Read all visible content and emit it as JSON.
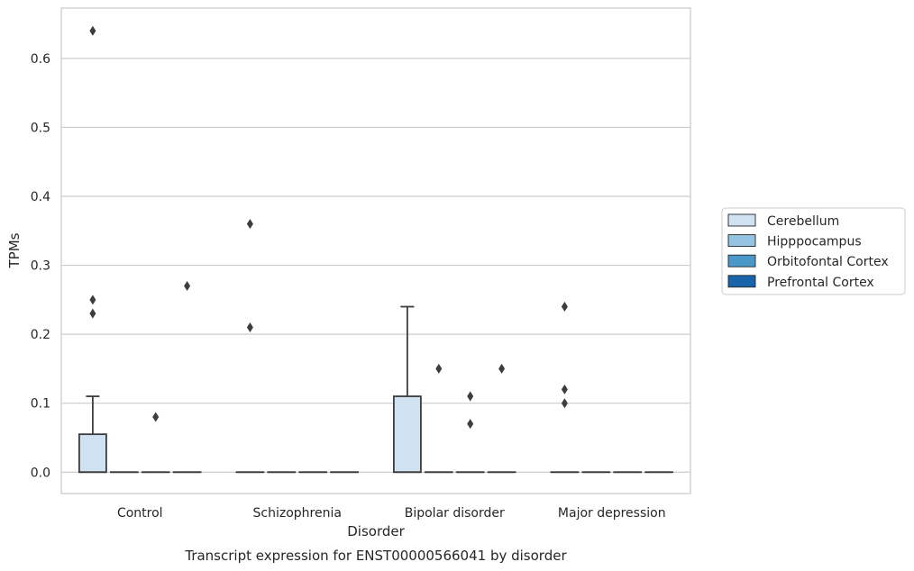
{
  "chart_data": {
    "type": "boxplot",
    "title": "Transcript expression for ENST00000566041 by disorder",
    "xlabel": "Disorder",
    "ylabel": "TPMs",
    "categories": [
      "Control",
      "Schizophrenia",
      "Bipolar disorder",
      "Major depression"
    ],
    "ylim": [
      -0.031,
      0.673
    ],
    "yticks": [
      0.0,
      0.1,
      0.2,
      0.3,
      0.4,
      0.5,
      0.6
    ],
    "ytick_labels": [
      "0.0",
      "0.1",
      "0.2",
      "0.3",
      "0.4",
      "0.5",
      "0.6"
    ],
    "grid": "horizontal",
    "legend_position": "center-right, outside",
    "series": [
      {
        "name": "Cerebellum",
        "color": "#d0e1f2",
        "boxes": [
          {
            "min": 0,
            "q1": 0,
            "median": 0,
            "q3": 0.055,
            "max": 0.11,
            "outliers": [
              0.64,
              0.25,
              0.23
            ]
          },
          {
            "min": 0,
            "q1": 0,
            "median": 0,
            "q3": 0,
            "max": 0,
            "outliers": [
              0.36,
              0.21
            ]
          },
          {
            "min": 0,
            "q1": 0,
            "median": 0,
            "q3": 0.11,
            "max": 0.24,
            "outliers": []
          },
          {
            "min": 0,
            "q1": 0,
            "median": 0,
            "q3": 0,
            "max": 0,
            "outliers": [
              0.24,
              0.12,
              0.1
            ]
          }
        ]
      },
      {
        "name": "Hipppocampus",
        "color": "#94c4df",
        "boxes": [
          {
            "min": 0,
            "q1": 0,
            "median": 0,
            "q3": 0,
            "max": 0,
            "outliers": []
          },
          {
            "min": 0,
            "q1": 0,
            "median": 0,
            "q3": 0,
            "max": 0,
            "outliers": []
          },
          {
            "min": 0,
            "q1": 0,
            "median": 0,
            "q3": 0,
            "max": 0,
            "outliers": [
              0.15
            ]
          },
          {
            "min": 0,
            "q1": 0,
            "median": 0,
            "q3": 0,
            "max": 0,
            "outliers": []
          }
        ]
      },
      {
        "name": "Orbitofontal Cortex",
        "color": "#4a98c9",
        "boxes": [
          {
            "min": 0,
            "q1": 0,
            "median": 0,
            "q3": 0,
            "max": 0,
            "outliers": [
              0.08
            ]
          },
          {
            "min": 0,
            "q1": 0,
            "median": 0,
            "q3": 0,
            "max": 0,
            "outliers": []
          },
          {
            "min": 0,
            "q1": 0,
            "median": 0,
            "q3": 0,
            "max": 0,
            "outliers": [
              0.11,
              0.07
            ]
          },
          {
            "min": 0,
            "q1": 0,
            "median": 0,
            "q3": 0,
            "max": 0,
            "outliers": []
          }
        ]
      },
      {
        "name": "Prefrontal Cortex",
        "color": "#1764ab",
        "boxes": [
          {
            "min": 0,
            "q1": 0,
            "median": 0,
            "q3": 0,
            "max": 0,
            "outliers": [
              0.27
            ]
          },
          {
            "min": 0,
            "q1": 0,
            "median": 0,
            "q3": 0,
            "max": 0,
            "outliers": []
          },
          {
            "min": 0,
            "q1": 0,
            "median": 0,
            "q3": 0,
            "max": 0,
            "outliers": [
              0.15
            ]
          },
          {
            "min": 0,
            "q1": 0,
            "median": 0,
            "q3": 0,
            "max": 0,
            "outliers": []
          }
        ]
      }
    ]
  }
}
